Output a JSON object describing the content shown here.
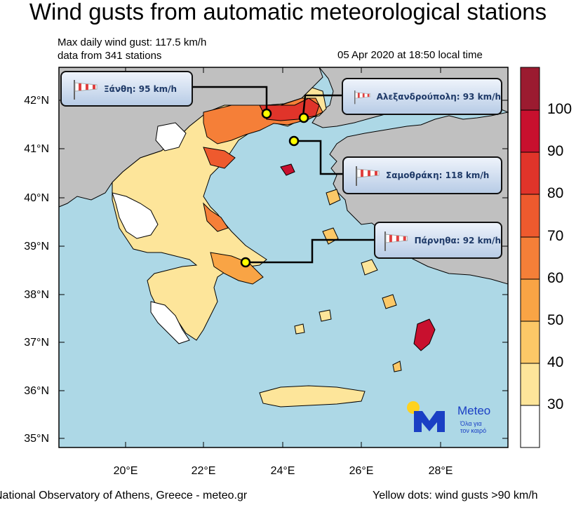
{
  "header": {
    "title": "Wind gusts from automatic meteorological stations",
    "max_gust": "Max daily wind gust: 117.5 km/h",
    "stations": "data from 341 stations",
    "datetime": "05 Apr 2020 at 18:50 local time"
  },
  "axes": {
    "lat_labels": [
      "42°N",
      "41°N",
      "40°N",
      "39°N",
      "38°N",
      "37°N",
      "36°N",
      "35°N"
    ],
    "lon_labels": [
      "20°E",
      "22°E",
      "24°E",
      "26°E",
      "28°E"
    ]
  },
  "colorbar": {
    "labels": [
      "100",
      "90",
      "80",
      "70",
      "60",
      "50",
      "40",
      "30"
    ],
    "colors": [
      "#9b1b30",
      "#c8102e",
      "#e0342a",
      "#ee5a2e",
      "#f57f38",
      "#f9a445",
      "#fcc867",
      "#fde59a",
      "#ffffff"
    ]
  },
  "callouts": [
    {
      "name": "Ξάνθη",
      "text": "Ξάνθη: 95 km/h"
    },
    {
      "name": "Αλεξανδρούπολη",
      "text": "Αλεξανδρούπολη: 93 km/h"
    },
    {
      "name": "Σαμοθράκη",
      "text": "Σαμοθράκη: 118 km/h"
    },
    {
      "name": "Πάρνηθα",
      "text": "Πάρνηθα: 92 km/h"
    }
  ],
  "logo": {
    "brand": "Meteo",
    "tagline_1": "Όλα για",
    "tagline_2": "τον καιρό",
    "colors": {
      "blue": "#1a3fc4",
      "yellow": "#ffd21f"
    }
  },
  "footer": {
    "source": "National Observatory of Athens, Greece - meteo.gr",
    "note": "Yellow dots: wind gusts >90 km/h"
  },
  "map_colors": {
    "sea": "#add8e6",
    "land_outside": "#c0c0c0",
    "dot": "#ffff00"
  }
}
